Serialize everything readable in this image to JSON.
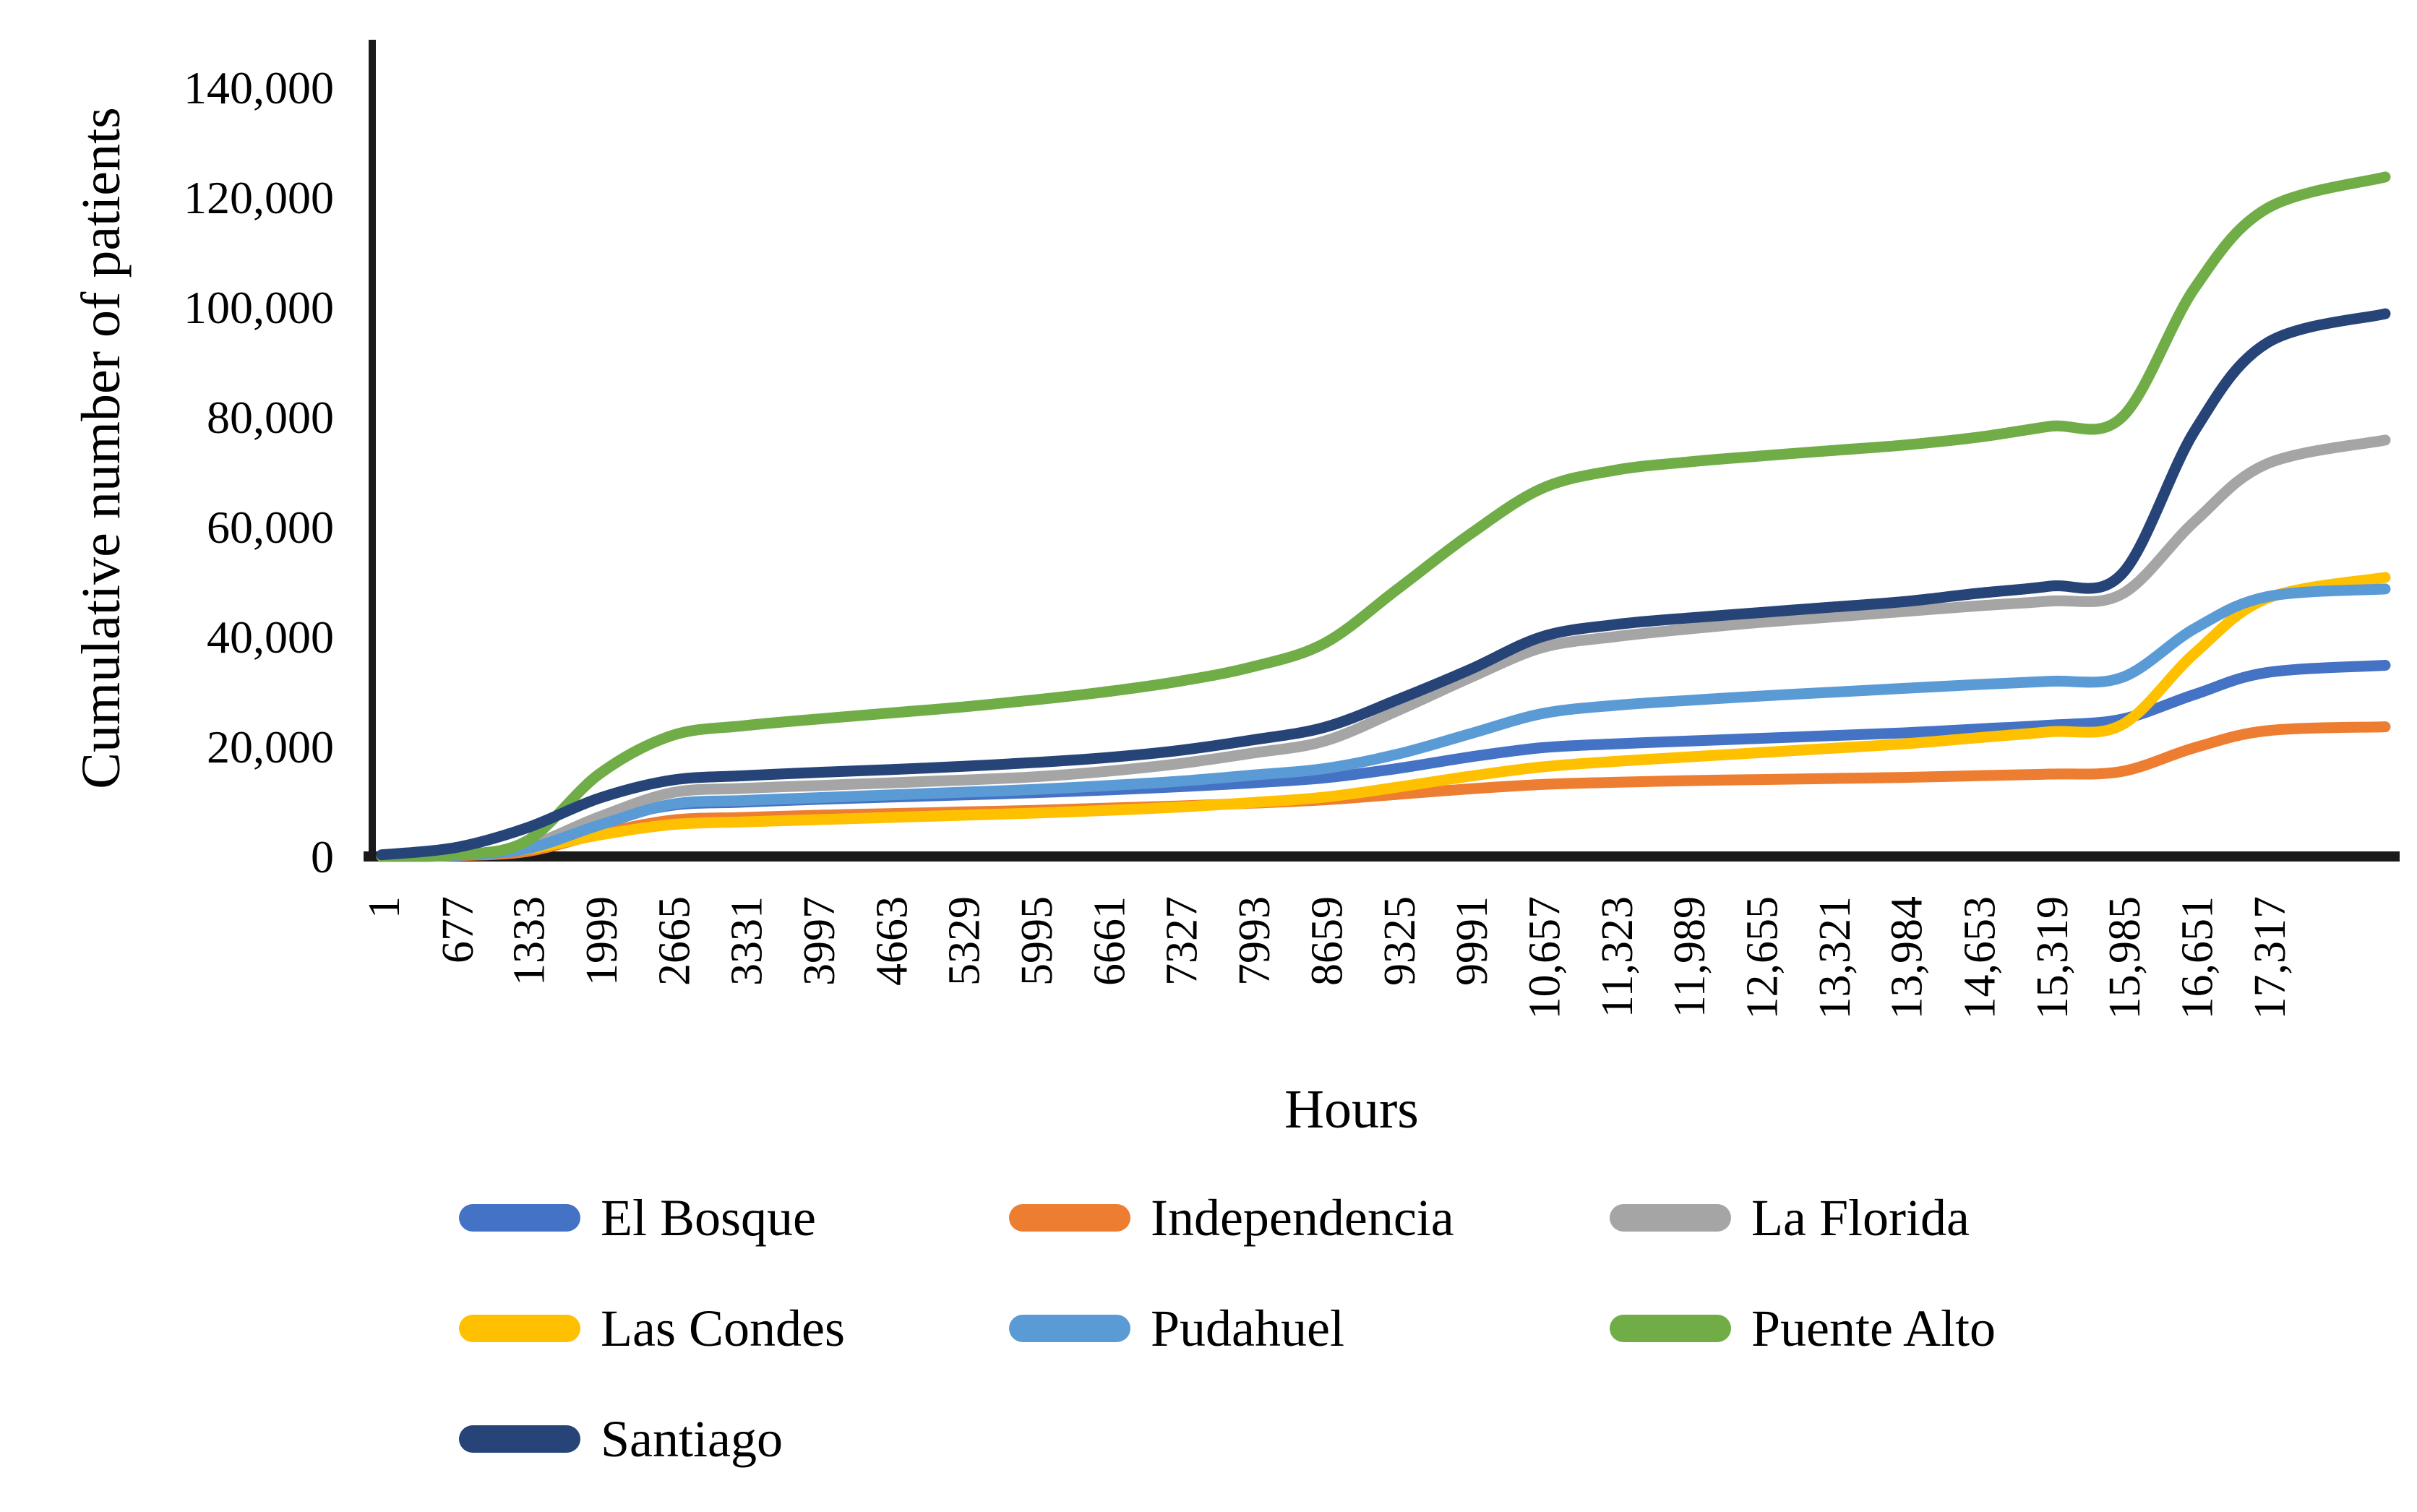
{
  "figure_title": "",
  "chart_data": {
    "type": "line",
    "title": "",
    "xlabel": "Hours",
    "ylabel": "Cumulative number of patients",
    "ylim": [
      0,
      140000
    ],
    "ytick_step": 20000,
    "ytick_values": [
      0,
      20000,
      40000,
      60000,
      80000,
      100000,
      120000,
      140000
    ],
    "ytick_labels": [
      "0",
      "20,000",
      "40,000",
      "60,000",
      "80,000",
      "100,000",
      "120,000",
      "140,000"
    ],
    "xtick_values": [
      1,
      677,
      1333,
      1999,
      2665,
      3331,
      3997,
      4663,
      5329,
      5995,
      6661,
      7327,
      7993,
      8659,
      9325,
      9991,
      10657,
      11323,
      11989,
      12655,
      13321,
      13984,
      14653,
      15319,
      15985,
      16651,
      17317
    ],
    "xtick_labels": [
      "1",
      "677",
      "1333",
      "1999",
      "2665",
      "3331",
      "3997",
      "4663",
      "5329",
      "5995",
      "6661",
      "7327",
      "7993",
      "8659",
      "9325",
      "9991",
      "10,657",
      "11,323",
      "11,989",
      "12,655",
      "13,321",
      "13,984",
      "14,653",
      "15,319",
      "15,985",
      "16,651",
      "17,317"
    ],
    "x_max_data": 18400,
    "grid": false,
    "legend_position": "bottom",
    "axis_color": "#1a1a1a",
    "x": [
      1,
      677,
      1333,
      1999,
      2665,
      3331,
      3997,
      4663,
      5329,
      5995,
      6661,
      7327,
      7993,
      8659,
      9325,
      9991,
      10657,
      11323,
      11989,
      12655,
      13321,
      13984,
      14653,
      15319,
      15985,
      16651,
      17317,
      18400
    ],
    "series": [
      {
        "name": "El Bosque",
        "color": "#4472C4",
        "values": [
          0,
          200,
          1600,
          6300,
          9300,
          9900,
          10400,
          10800,
          11200,
          11600,
          12100,
          12700,
          13400,
          14300,
          16000,
          18100,
          19800,
          20500,
          21000,
          21500,
          22000,
          22500,
          23200,
          23900,
          25000,
          29500,
          33500,
          34800
        ]
      },
      {
        "name": "Independencia",
        "color": "#ED7D31",
        "values": [
          0,
          150,
          900,
          4100,
          6600,
          7100,
          7500,
          7800,
          8100,
          8400,
          8800,
          9200,
          9700,
          10300,
          11300,
          12300,
          13100,
          13500,
          13800,
          14000,
          14200,
          14400,
          14700,
          15000,
          15500,
          19800,
          22900,
          23600
        ]
      },
      {
        "name": "La Florida",
        "color": "#A5A5A5",
        "values": [
          0,
          200,
          1900,
          7200,
          11600,
          12400,
          12900,
          13400,
          13900,
          14500,
          15500,
          16900,
          18800,
          21000,
          26500,
          32500,
          38000,
          40000,
          41400,
          42600,
          43600,
          44600,
          45600,
          46500,
          47800,
          61000,
          71500,
          75800
        ]
      },
      {
        "name": "Las Condes",
        "color": "#FFC000",
        "values": [
          0,
          300,
          1300,
          3900,
          5800,
          6300,
          6700,
          7100,
          7500,
          7900,
          8400,
          9000,
          9800,
          10800,
          12600,
          14600,
          16300,
          17300,
          18100,
          18900,
          19700,
          20500,
          21600,
          22700,
          24000,
          37000,
          47000,
          50800
        ]
      },
      {
        "name": "Pudahuel",
        "color": "#5B9BD5",
        "values": [
          0,
          200,
          1400,
          5700,
          9500,
          10200,
          10700,
          11200,
          11700,
          12200,
          12900,
          13700,
          14800,
          16000,
          18600,
          22300,
          26000,
          27500,
          28400,
          29200,
          29900,
          30600,
          31300,
          31900,
          32600,
          41500,
          47300,
          48700
        ]
      },
      {
        "name": "Puente Alto",
        "color": "#70AD47",
        "values": [
          0,
          300,
          2800,
          15000,
          22000,
          23800,
          25000,
          26100,
          27200,
          28500,
          30000,
          31900,
          34500,
          38800,
          48600,
          58600,
          67000,
          70300,
          71800,
          72900,
          73900,
          74900,
          76300,
          78300,
          80000,
          103500,
          118000,
          123700
        ]
      },
      {
        "name": "Santiago",
        "color": "#264478",
        "values": [
          300,
          1600,
          5200,
          10600,
          13900,
          14700,
          15300,
          15800,
          16400,
          17100,
          18000,
          19300,
          21200,
          23500,
          28500,
          34000,
          40000,
          42200,
          43400,
          44400,
          45400,
          46400,
          47900,
          49200,
          51500,
          77500,
          93500,
          98800
        ]
      }
    ]
  }
}
